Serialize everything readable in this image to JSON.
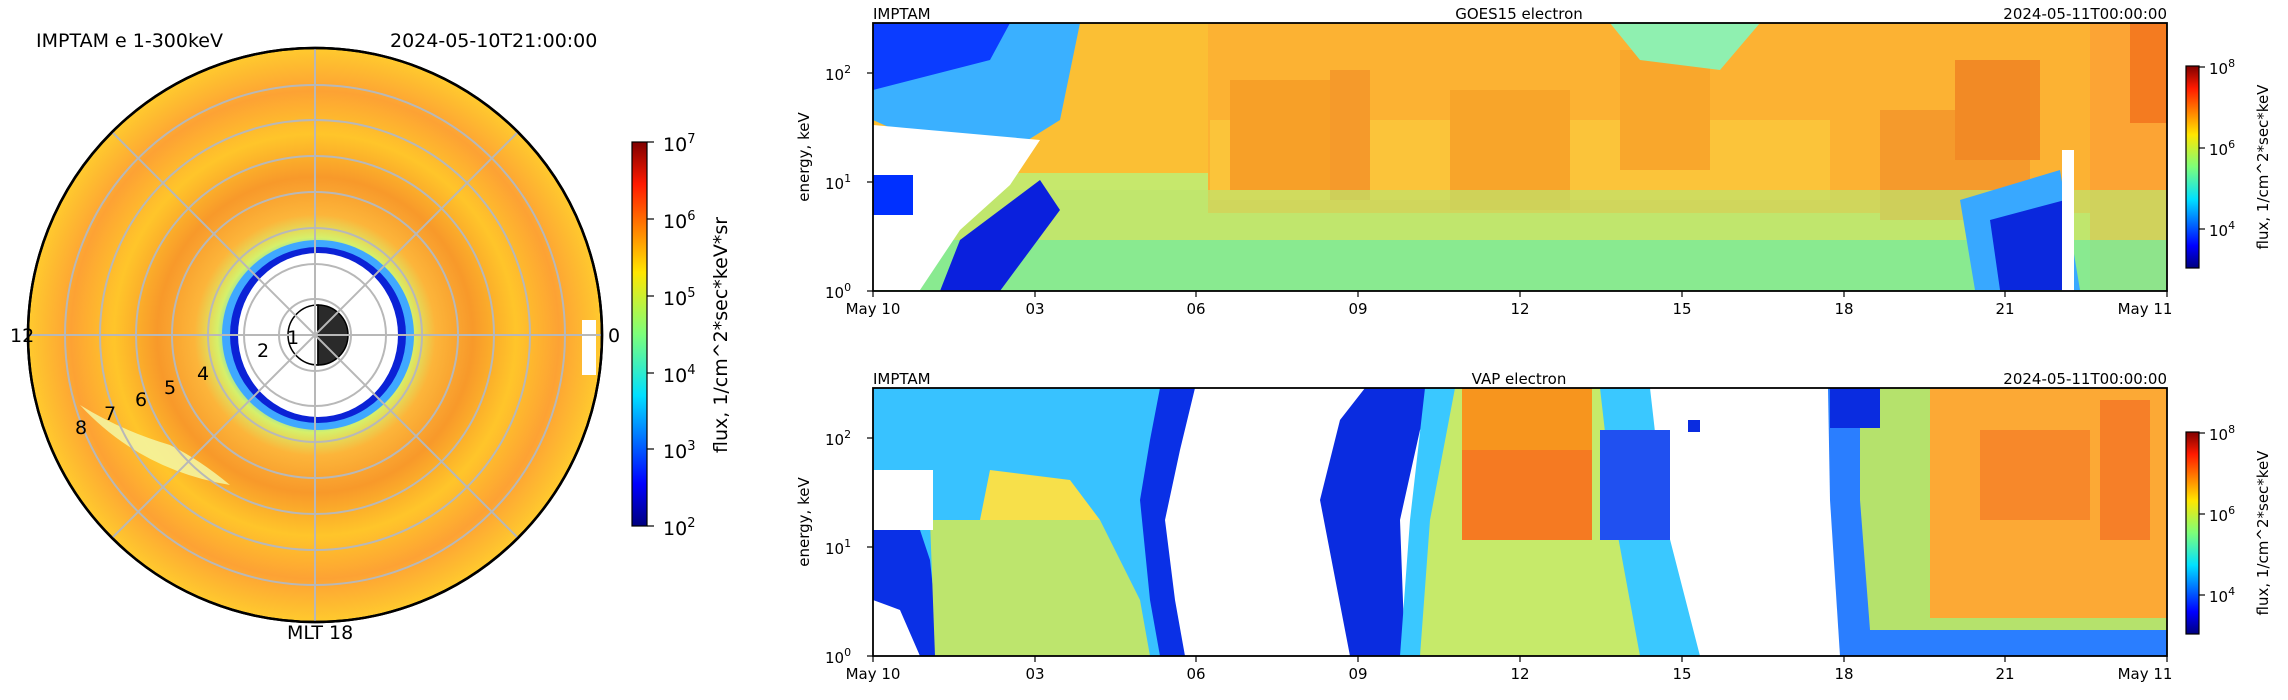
{
  "left_panel": {
    "title_left": "IMPTAM e 1-300keV",
    "title_right": "2024-05-10T21:00:00",
    "label_top": "",
    "label_left": "12",
    "label_right": "0",
    "label_bottom": "MLT 18",
    "ring_labels": [
      "1",
      "2",
      "4",
      "5",
      "6",
      "7",
      "8"
    ],
    "colorbar_label": "flux, 1/cm^2*sec*keV*sr",
    "colorbar_ticks": [
      {
        "base": "10",
        "exp": "7"
      },
      {
        "base": "10",
        "exp": "6"
      },
      {
        "base": "10",
        "exp": "5"
      },
      {
        "base": "10",
        "exp": "4"
      },
      {
        "base": "10",
        "exp": "3"
      },
      {
        "base": "10",
        "exp": "2"
      }
    ]
  },
  "top_panel": {
    "corner_left": "IMPTAM",
    "center_title": "GOES15 electron",
    "corner_right": "2024-05-11T00:00:00",
    "ylabel": "energy, keV",
    "colorbar_label": "flux, 1/cm^2*sec*keV",
    "colorbar_ticks": [
      {
        "base": "10",
        "exp": "8"
      },
      {
        "base": "10",
        "exp": "6"
      },
      {
        "base": "10",
        "exp": "4"
      }
    ]
  },
  "bottom_panel": {
    "corner_left": "IMPTAM",
    "center_title": "VAP electron",
    "corner_right": "2024-05-11T00:00:00",
    "ylabel": "energy, keV",
    "colorbar_label": "flux, 1/cm^2*sec*keV",
    "colorbar_ticks": [
      {
        "base": "10",
        "exp": "8"
      },
      {
        "base": "10",
        "exp": "6"
      },
      {
        "base": "10",
        "exp": "4"
      }
    ]
  },
  "xticks": [
    "May 10",
    "03",
    "06",
    "09",
    "12",
    "15",
    "18",
    "21",
    "May 11"
  ],
  "yticks": [
    {
      "base": "10",
      "exp": "2"
    },
    {
      "base": "10",
      "exp": "1"
    },
    {
      "base": "10",
      "exp": "0"
    }
  ],
  "chart_data": [
    {
      "type": "heatmap",
      "subtype": "polar",
      "title": "IMPTAM e 1-300keV",
      "time": "2024-05-10T21:00:00",
      "rings": [
        1,
        2,
        4,
        5,
        6,
        7,
        8
      ],
      "colorscale": "jet",
      "colorbar": {
        "label": "flux, 1/cm^2*sec*keV*sr",
        "scale": "log",
        "range": [
          100,
          10000000
        ]
      }
    },
    {
      "type": "heatmap",
      "title": "GOES15 electron",
      "ylabel": "energy, keV",
      "yscale": "log",
      "ylim": [
        1,
        300
      ],
      "x_range": [
        "2024-05-10T00:00",
        "2024-05-11T00:00"
      ],
      "colorscale": "jet",
      "colorbar": {
        "label": "flux, 1/cm^2*sec*keV",
        "scale": "log",
        "range": [
          1000,
          100000000
        ]
      }
    },
    {
      "type": "heatmap",
      "title": "VAP electron",
      "ylabel": "energy, keV",
      "yscale": "log",
      "ylim": [
        1,
        300
      ],
      "x_range": [
        "2024-05-10T00:00",
        "2024-05-11T00:00"
      ],
      "colorscale": "jet",
      "colorbar": {
        "label": "flux, 1/cm^2*sec*keV",
        "scale": "log",
        "range": [
          1000,
          100000000
        ]
      }
    }
  ]
}
